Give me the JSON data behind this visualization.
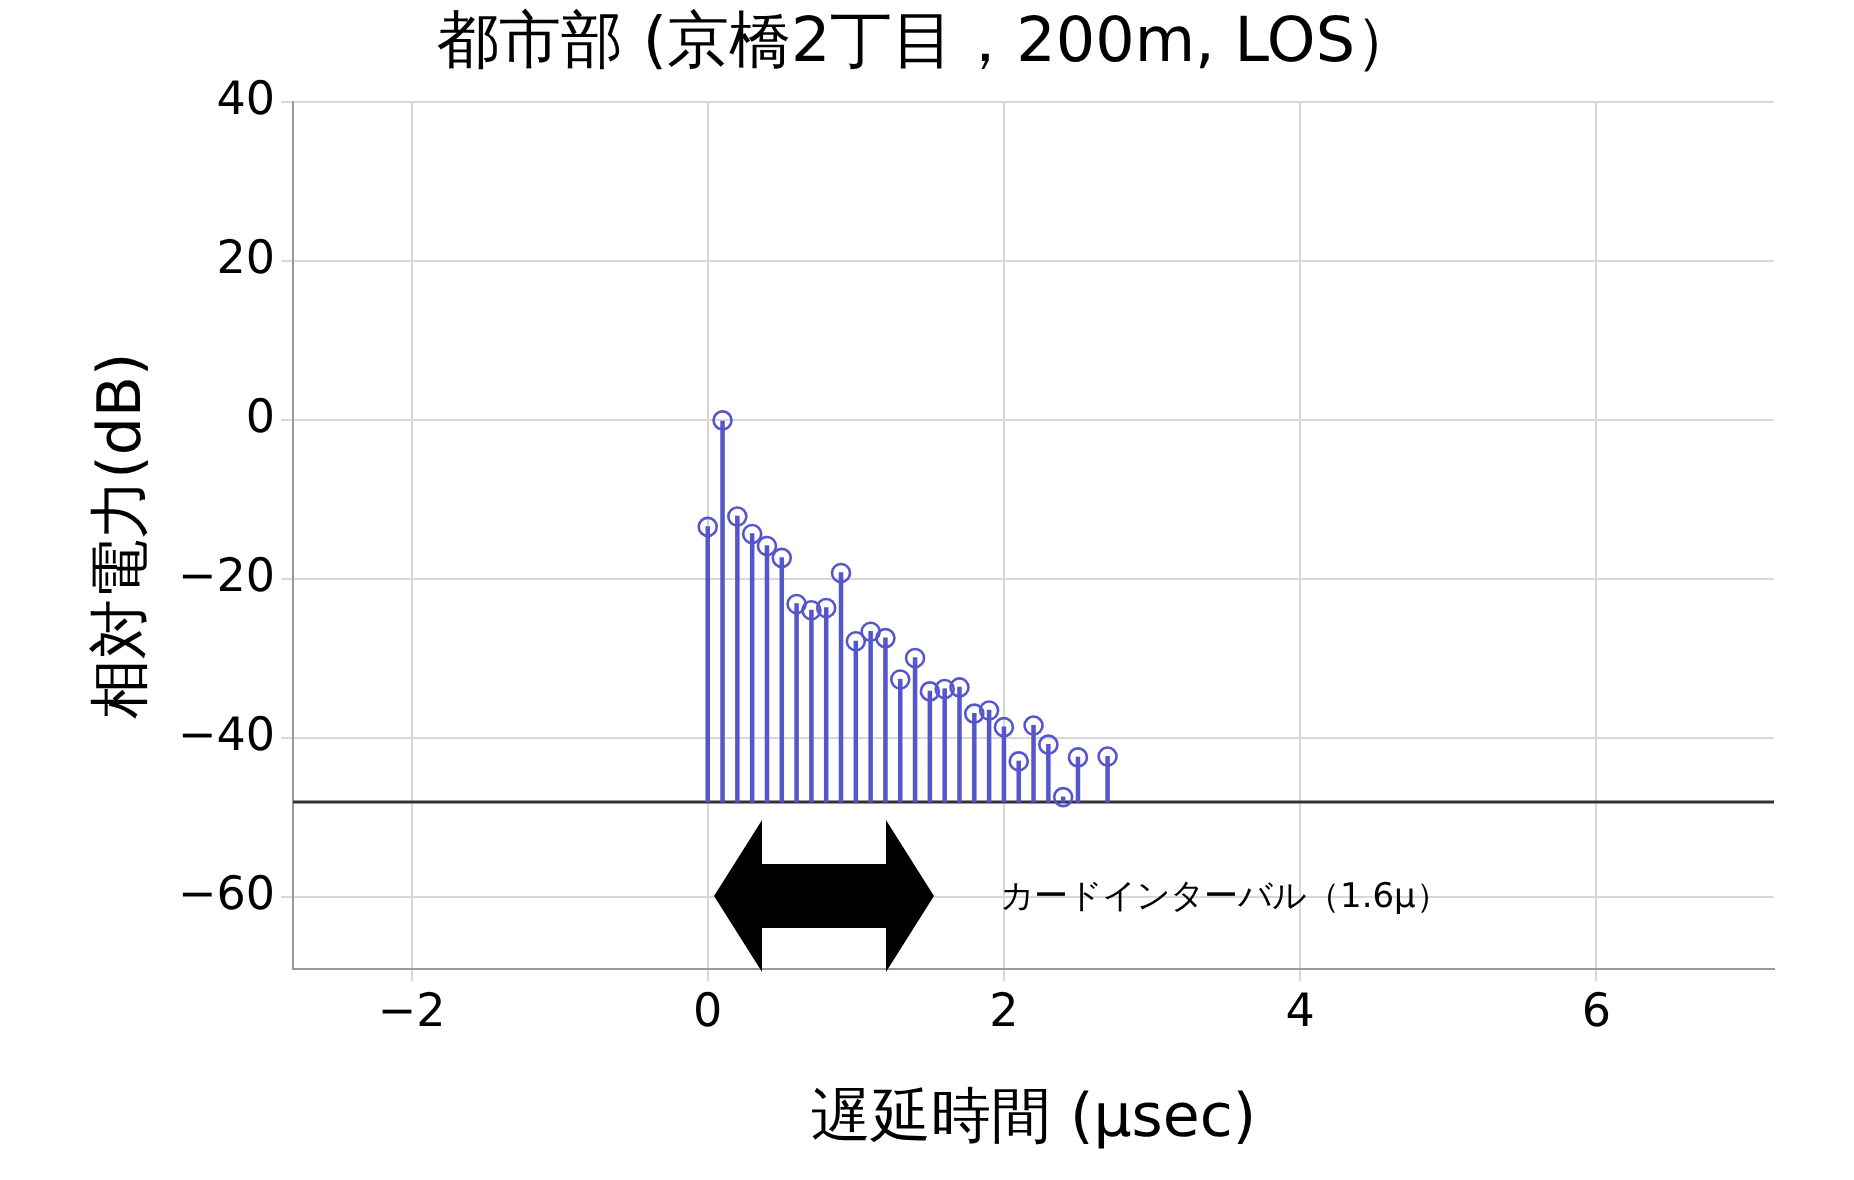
{
  "chart_data": {
    "type": "bar",
    "title": "都市部 (京橋2丁目，200m, LOS）",
    "xlabel": "遅延時間 (μsec)",
    "ylabel": "相対電力(dB)",
    "x": [
      0,
      0.1,
      0.2,
      0.3,
      0.4,
      0.5,
      0.6,
      0.7,
      0.8,
      0.9,
      1.0,
      1.1,
      1.2,
      1.3,
      1.4,
      1.5,
      1.6,
      1.7,
      1.8,
      1.9,
      2.0,
      2.1,
      2.2,
      2.3,
      2.4,
      2.5,
      2.7
    ],
    "series": [
      {
        "color": "#5555cc",
        "base": [
          -48,
          -48,
          -48,
          -48,
          -48,
          -48,
          -48,
          -48,
          -48,
          -48,
          -48,
          -48,
          -48,
          -48,
          -48,
          -48,
          -48,
          -48,
          -48,
          -48,
          -48,
          -48,
          -48,
          -48,
          -48,
          -48,
          -48
        ],
        "values": [
          34.6,
          48,
          35.9,
          33.7,
          32.2,
          30.7,
          24.9,
          24.1,
          24.4,
          28.8,
          20.2,
          21.4,
          20.6,
          15.4,
          18.1,
          13.9,
          14.2,
          14.4,
          11.1,
          11.5,
          9.4,
          5.1,
          9.6,
          7.2,
          0.6,
          5.6,
          5.7
        ]
      },
      {
        "type": "scatter",
        "color": "#5555cc",
        "marker": "circle",
        "values": [
          -13.4,
          0,
          -12.1,
          -14.3,
          -15.8,
          -17.3,
          -23.1,
          -23.9,
          -23.6,
          -19.2,
          -27.8,
          -26.6,
          -27.4,
          -32.6,
          -29.9,
          -34.1,
          -33.8,
          -33.6,
          -36.9,
          -36.5,
          -38.6,
          -42.9,
          -38.4,
          -40.8,
          -47.4,
          -42.4,
          -42.3
        ]
      }
    ],
    "xlim": [
      -2.8,
      7.2
    ],
    "xticks": [
      -2,
      0,
      2,
      4,
      6
    ],
    "ylim": [
      -69,
      40
    ],
    "yticks": [
      40,
      20,
      0,
      -20,
      -40,
      -60
    ],
    "ref_lines": [
      {
        "axis": "y",
        "value": -48,
        "color": "#333333"
      }
    ],
    "annotations": [
      "カードインターバル（1.6μ）"
    ],
    "grid": true,
    "legend": false
  }
}
